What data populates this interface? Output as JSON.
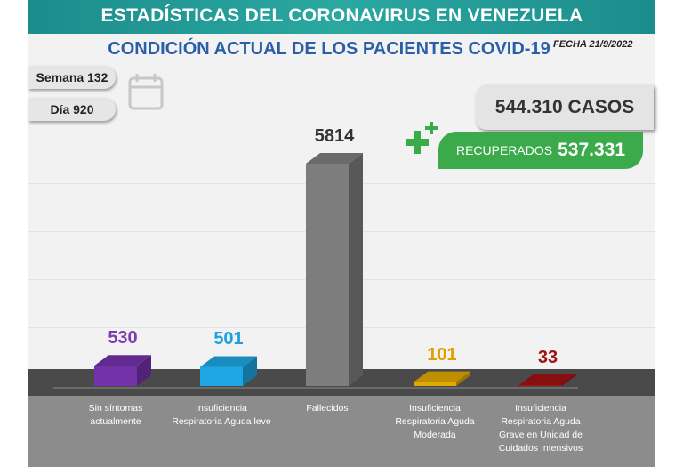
{
  "chart_data": {
    "type": "bar3d",
    "title": "ESTADÍSTICAS DEL CORONAVIRUS EN VENEZUELA",
    "subtitle": "CONDICIÓN ACTUAL DE LOS PACIENTES COVID-19",
    "date": "FECHA 21/9/2022",
    "week": "Semana 132",
    "day": "Día 920",
    "total_cases": "544.310 CASOS",
    "recovered_label": "RECUPERADOS",
    "recovered": "537.331",
    "categories": [
      "Sin síntomas actualmente",
      "Insuficiencia Respiratoria Aguda leve",
      "Fallecidos",
      "Insuficiencia Respiratoria Aguda Moderada",
      "Insuficiencia Respiratoria Aguda Grave en Unidad de Cuidados Intensivos"
    ],
    "values": [
      530,
      501,
      5814,
      101,
      33
    ],
    "colors": [
      "#7232a8",
      "#1ea6e2",
      "#7d7d7d",
      "#e0a800",
      "#a01212"
    ],
    "label_colors": [
      "#7a3ab4",
      "#1ea0e0",
      "#333333",
      "#e0a000",
      "#a01212"
    ]
  }
}
